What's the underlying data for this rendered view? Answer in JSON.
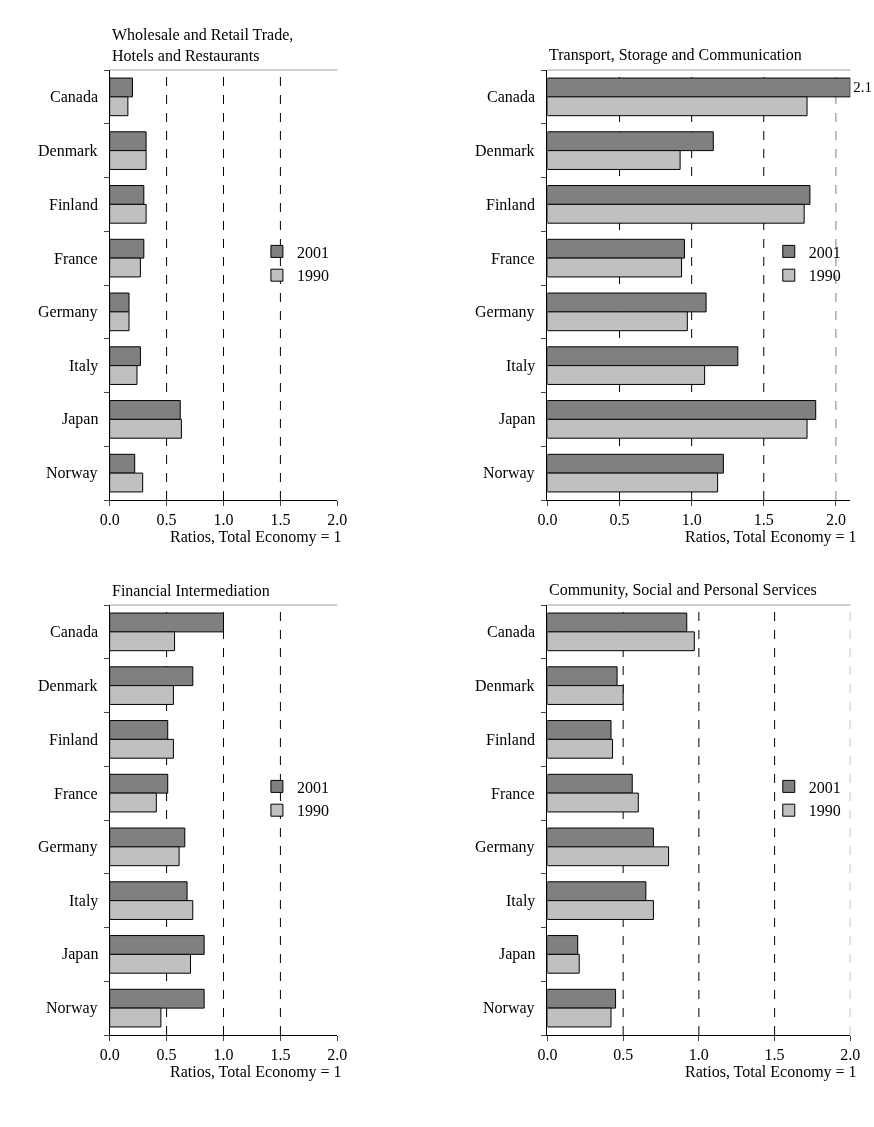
{
  "chart_data": [
    {
      "type": "bar",
      "orientation": "horizontal",
      "title": "Wholesale and Retail Trade,\nHotels and Restaurants",
      "xlabel": "Ratios, Total Economy = 1",
      "categories": [
        "Canada",
        "Denmark",
        "Finland",
        "France",
        "Germany",
        "Italy",
        "Japan",
        "Norway"
      ],
      "series": [
        {
          "name": "2001",
          "color": "#808080",
          "values": [
            0.2,
            0.32,
            0.3,
            0.3,
            0.17,
            0.27,
            0.62,
            0.22
          ]
        },
        {
          "name": "1990",
          "color": "#c0c0c0",
          "values": [
            0.16,
            0.32,
            0.32,
            0.27,
            0.17,
            0.24,
            0.63,
            0.29
          ]
        }
      ],
      "xlim": [
        0,
        2
      ],
      "xticks": [
        {
          "value": 0,
          "label": "0.0"
        },
        {
          "value": 0.5,
          "label": "0.5"
        },
        {
          "value": 1,
          "label": "1.0"
        },
        {
          "value": 1.5,
          "label": "1.5"
        },
        {
          "value": 2,
          "label": "2.0"
        }
      ],
      "ref_lines": [
        {
          "axis": "x",
          "value": 0.5,
          "color": "#000000",
          "line_style": "dashed"
        },
        {
          "axis": "x",
          "value": 1.0,
          "color": "#000000",
          "line_style": "dashed"
        },
        {
          "axis": "x",
          "value": 1.5,
          "color": "#000000",
          "line_style": "dashed"
        }
      ],
      "legend": "right",
      "grid": false
    },
    {
      "type": "bar",
      "orientation": "horizontal",
      "title": "Transport, Storage and Communication",
      "xlabel": "Ratios, Total Economy = 1",
      "categories": [
        "Canada",
        "Denmark",
        "Finland",
        "France",
        "Germany",
        "Italy",
        "Japan",
        "Norway"
      ],
      "series": [
        {
          "name": "2001",
          "color": "#808080",
          "values": [
            2.1,
            1.15,
            1.82,
            0.95,
            1.1,
            1.32,
            1.86,
            1.22
          ],
          "value_labels": [
            "2.1",
            null,
            null,
            null,
            null,
            null,
            null,
            null
          ]
        },
        {
          "name": "1990",
          "color": "#c0c0c0",
          "values": [
            1.8,
            0.92,
            1.78,
            0.93,
            0.97,
            1.09,
            1.8,
            1.18
          ]
        }
      ],
      "xlim": [
        0,
        2.1
      ],
      "xticks": [
        {
          "value": 0,
          "label": "0.0"
        },
        {
          "value": 0.5,
          "label": "0.5"
        },
        {
          "value": 1,
          "label": "1.0"
        },
        {
          "value": 1.5,
          "label": "1.5"
        },
        {
          "value": 2,
          "label": "2.0"
        }
      ],
      "ref_lines": [
        {
          "axis": "x",
          "value": 0.5,
          "color": "#000000",
          "line_style": "dashed"
        },
        {
          "axis": "x",
          "value": 1.0,
          "color": "#000000",
          "line_style": "dashed"
        },
        {
          "axis": "x",
          "value": 1.5,
          "color": "#000000",
          "line_style": "dashed"
        },
        {
          "axis": "x",
          "value": 2.0,
          "color": "#808080",
          "line_style": "dashed"
        }
      ],
      "legend": "right",
      "grid": false
    },
    {
      "type": "bar",
      "orientation": "horizontal",
      "title": "Financial Intermediation",
      "xlabel": "Ratios, Total Economy = 1",
      "categories": [
        "Canada",
        "Denmark",
        "Finland",
        "France",
        "Germany",
        "Italy",
        "Japan",
        "Norway"
      ],
      "series": [
        {
          "name": "2001",
          "color": "#808080",
          "values": [
            1.0,
            0.73,
            0.51,
            0.51,
            0.66,
            0.68,
            0.83,
            0.83
          ]
        },
        {
          "name": "1990",
          "color": "#c0c0c0",
          "values": [
            0.57,
            0.56,
            0.56,
            0.41,
            0.61,
            0.73,
            0.71,
            0.45
          ]
        }
      ],
      "xlim": [
        0,
        2
      ],
      "xticks": [
        {
          "value": 0,
          "label": "0.0"
        },
        {
          "value": 0.5,
          "label": "0.5"
        },
        {
          "value": 1,
          "label": "1.0"
        },
        {
          "value": 1.5,
          "label": "1.5"
        },
        {
          "value": 2,
          "label": "2.0"
        }
      ],
      "ref_lines": [
        {
          "axis": "x",
          "value": 0.5,
          "color": "#000000",
          "line_style": "dashed"
        },
        {
          "axis": "x",
          "value": 1.0,
          "color": "#000000",
          "line_style": "dashed"
        },
        {
          "axis": "x",
          "value": 1.5,
          "color": "#000000",
          "line_style": "dashed"
        }
      ],
      "legend": "right",
      "grid": false
    },
    {
      "type": "bar",
      "orientation": "horizontal",
      "title": "Community, Social and Personal Services",
      "xlabel": "Ratios, Total Economy = 1",
      "categories": [
        "Canada",
        "Denmark",
        "Finland",
        "France",
        "Germany",
        "Italy",
        "Japan",
        "Norway"
      ],
      "series": [
        {
          "name": "2001",
          "color": "#808080",
          "values": [
            0.92,
            0.46,
            0.42,
            0.56,
            0.7,
            0.65,
            0.2,
            0.45
          ]
        },
        {
          "name": "1990",
          "color": "#c0c0c0",
          "values": [
            0.97,
            0.5,
            0.43,
            0.6,
            0.8,
            0.7,
            0.21,
            0.42
          ]
        }
      ],
      "xlim": [
        0,
        2
      ],
      "xticks": [
        {
          "value": 0,
          "label": "0.0"
        },
        {
          "value": 0.5,
          "label": "0.5"
        },
        {
          "value": 1,
          "label": "1.0"
        },
        {
          "value": 1.5,
          "label": "1.5"
        },
        {
          "value": 2,
          "label": "2.0"
        }
      ],
      "ref_lines": [
        {
          "axis": "x",
          "value": 0.5,
          "color": "#000000",
          "line_style": "dashed"
        },
        {
          "axis": "x",
          "value": 1.0,
          "color": "#000000",
          "line_style": "dashed"
        },
        {
          "axis": "x",
          "value": 1.5,
          "color": "#000000",
          "line_style": "dashed"
        },
        {
          "axis": "x",
          "value": 2.0,
          "color": "#808080",
          "line_style": "dashed"
        }
      ],
      "legend": "right",
      "grid": false
    }
  ]
}
